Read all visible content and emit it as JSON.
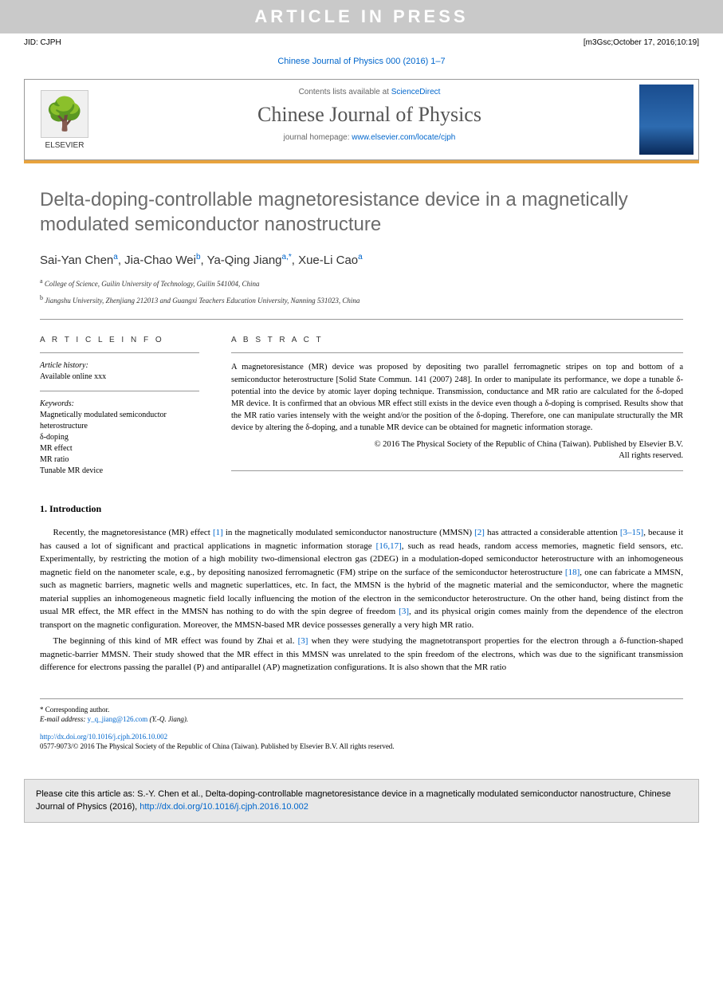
{
  "banner": {
    "article_in_press": "ARTICLE IN PRESS"
  },
  "meta": {
    "jid": "JID: CJPH",
    "stamp": "[m3Gsc;October 17, 2016;10:19]"
  },
  "journal_ref": "Chinese Journal of Physics 000 (2016) 1–7",
  "header": {
    "elsevier": "ELSEVIER",
    "contents_prefix": "Contents lists available at ",
    "contents_link": "ScienceDirect",
    "journal_name": "Chinese Journal of Physics",
    "homepage_prefix": "journal homepage: ",
    "homepage_link": "www.elsevier.com/locate/cjph"
  },
  "title": "Delta-doping-controllable magnetoresistance device in a magnetically modulated semiconductor nanostructure",
  "authors_html": "Sai-Yan Chen<sup>a</sup>, Jia-Chao Wei<sup>b</sup>, Ya-Qing Jiang<sup>a,*</sup>, Xue-Li Cao<sup>a</sup>",
  "affiliations": [
    "a College of Science, Guilin University of Technology, Guilin 541004, China",
    "b Jiangshu University, Zhenjiang 212013 and Guangxi Teachers Education University, Nanning 531023, China"
  ],
  "article_info": {
    "heading": "A R T I C L E   I N F O",
    "history_label": "Article history:",
    "history_text": "Available online xxx",
    "keywords_label": "Keywords:",
    "keywords": [
      "Magnetically modulated semiconductor heterostructure",
      "δ-doping",
      "MR effect",
      "MR ratio",
      "Tunable MR device"
    ]
  },
  "abstract": {
    "heading": "A B S T R A C T",
    "text": "A magnetoresistance (MR) device was proposed by depositing two parallel ferromagnetic stripes on top and bottom of a semiconductor heterostructure [Solid State Commun. 141 (2007) 248]. In order to manipulate its performance, we dope a tunable δ-potential into the device by atomic layer doping technique. Transmission, conductance and MR ratio are calculated for the δ-doped MR device. It is confirmed that an obvious MR effect still exists in the device even though a δ-doping is comprised. Results show that the MR ratio varies intensely with the weight and/or the position of the δ-doping. Therefore, one can manipulate structurally the MR device by altering the δ-doping, and a tunable MR device can be obtained for magnetic information storage.",
    "copyright1": "© 2016 The Physical Society of the Republic of China (Taiwan). Published by Elsevier B.V.",
    "copyright2": "All rights reserved."
  },
  "section1": {
    "heading": "1. Introduction",
    "p1_parts": [
      "Recently, the magnetoresistance (MR) effect ",
      "[1]",
      " in the magnetically modulated semiconductor nanostructure (MMSN) ",
      "[2]",
      " has attracted a considerable attention ",
      "[3–15]",
      ", because it has caused a lot of significant and practical applications in magnetic information storage ",
      "[16,17]",
      ", such as read heads, random access memories, magnetic field sensors, etc. Experimentally, by restricting the motion of a high mobility two-dimensional electron gas (2DEG) in a modulation-doped semiconductor heterostructure with an inhomogeneous magnetic field on the nanometer scale, e.g., by depositing nanosized ferromagnetic (FM) stripe on the surface of the semiconductor heterostructure ",
      "[18]",
      ", one can fabricate a MMSN, such as magnetic barriers, magnetic wells and magnetic superlattices, etc. In fact, the MMSN is the hybrid of the magnetic material and the semiconductor, where the magnetic material supplies an inhomogeneous magnetic field locally influencing the motion of the electron in the semiconductor heterostructure. On the other hand, being distinct from the usual MR effect, the MR effect in the MMSN has nothing to do with the spin degree of freedom ",
      "[3]",
      ", and its physical origin comes mainly from the dependence of the electron transport on the magnetic configuration. Moreover, the MMSN-based MR device possesses generally a very high MR ratio."
    ],
    "p2_parts": [
      "The beginning of this kind of MR effect was found by Zhai et al. ",
      "[3]",
      " when they were studying the magnetotransport properties for the electron through a δ-function-shaped magnetic-barrier MMSN. Their study showed that the MR effect in this MMSN was unrelated to the spin freedom of the electrons, which was due to the significant transmission difference for electrons passing the parallel (P) and antiparallel (AP) magnetization configurations. It is also shown that the MR ratio"
    ]
  },
  "footer": {
    "corresponding": "* Corresponding author.",
    "email_label": "E-mail address: ",
    "email": "y_q_jiang@126.com",
    "email_suffix": " (Y.-Q. Jiang).",
    "doi": "http://dx.doi.org/10.1016/j.cjph.2016.10.002",
    "issn": "0577-9073/© 2016 The Physical Society of the Republic of China (Taiwan). Published by Elsevier B.V. All rights reserved."
  },
  "cite_box": {
    "text_prefix": "Please cite this article as: S.-Y. Chen et al., Delta-doping-controllable magnetoresistance device in a magnetically modulated semiconductor nanostructure, Chinese Journal of Physics (2016), ",
    "link": "http://dx.doi.org/10.1016/j.cjph.2016.10.002"
  },
  "colors": {
    "link": "#0066cc",
    "orange": "#e8a33d",
    "grey_banner": "#c9c9c9",
    "title_grey": "#6b6b6b"
  }
}
